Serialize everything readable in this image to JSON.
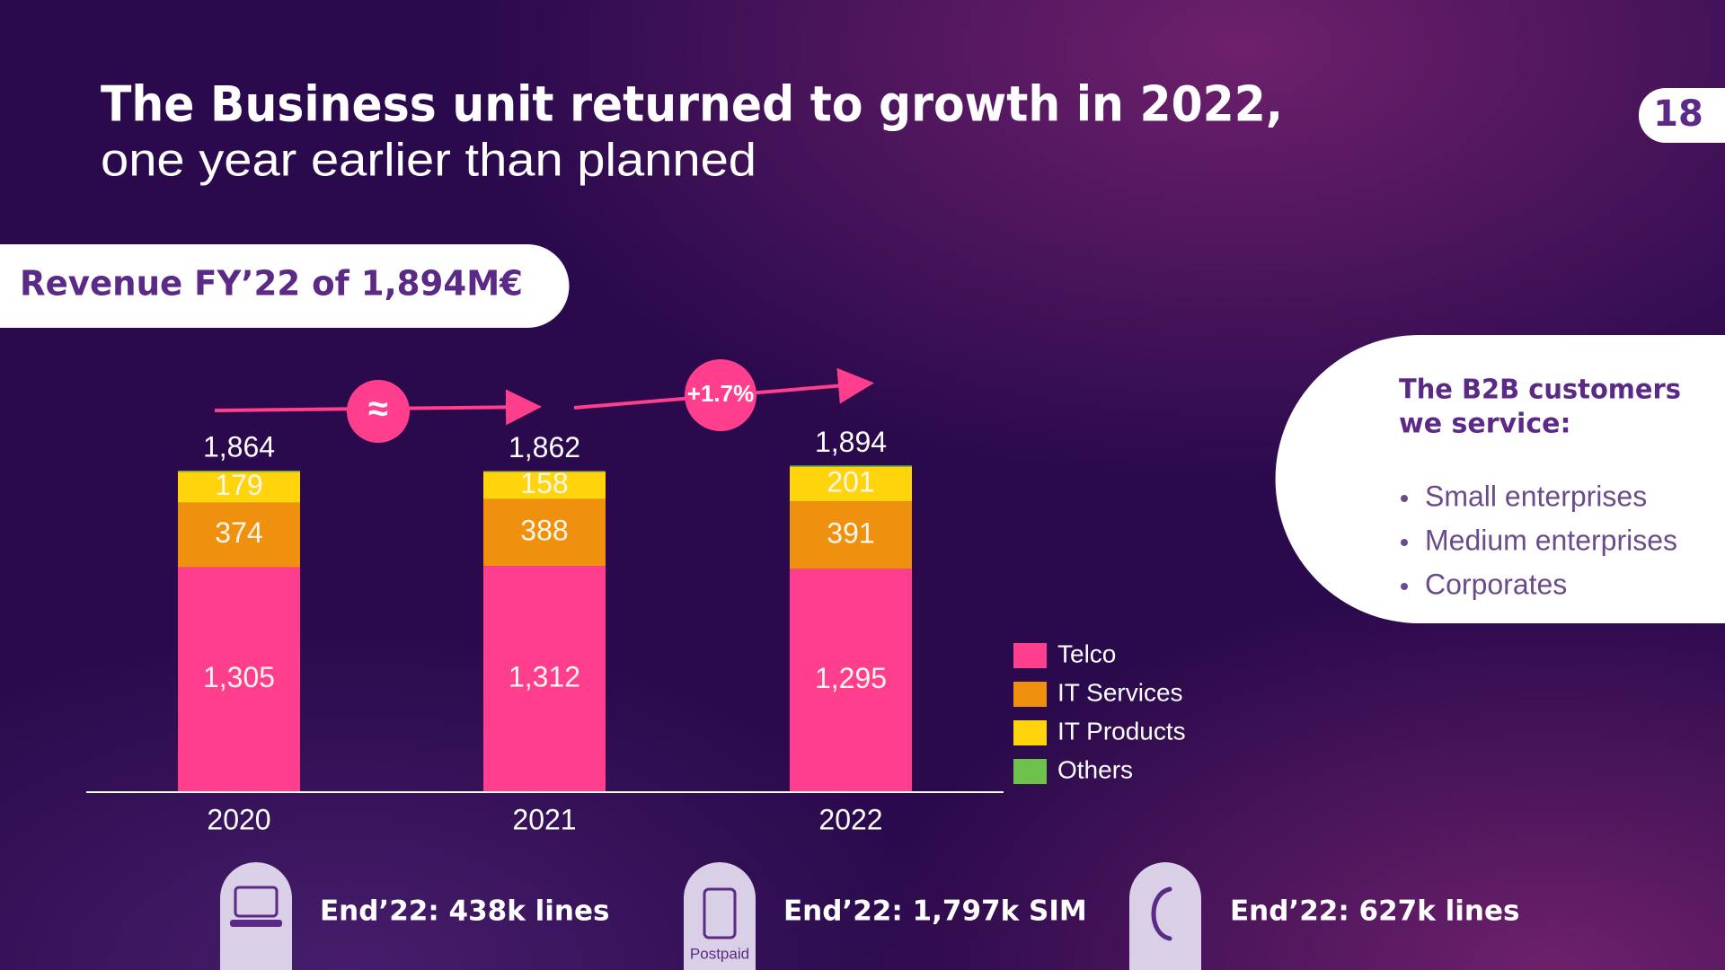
{
  "slide": {
    "title": "The Business unit returned to growth in 2022,",
    "subtitle": "one year earlier than planned",
    "page_number": "18",
    "revenue_badge": "Revenue FY’22 of 1,894M€",
    "customers": {
      "title_lines": [
        "The B2B customers",
        "we service:"
      ],
      "items": [
        "Small enterprises",
        "Medium enterprises",
        "Corporates"
      ]
    },
    "footer": {
      "stats": [
        "End’22: 438k lines",
        "End’22: 1,797k SIM",
        "End’22: 627k lines"
      ],
      "icon_caption": "Postpaid"
    }
  },
  "chart_data": {
    "type": "stacked_bar",
    "categories": [
      "2020",
      "2021",
      "2022"
    ],
    "series": [
      {
        "name": "Telco",
        "color": "#ff3f8e",
        "values": [
          1305,
          1312,
          1295
        ],
        "value_labels": [
          "1,305",
          "1,312",
          "1,295"
        ]
      },
      {
        "name": "IT Services",
        "color": "#f0900f",
        "values": [
          374,
          388,
          391
        ]
      },
      {
        "name": "IT Products",
        "color": "#ffd40c",
        "values": [
          179,
          158,
          201
        ]
      },
      {
        "name": "Others",
        "color": "#6cc24a",
        "values": [
          6,
          4,
          7
        ]
      }
    ],
    "totals": {
      "values": [
        1864,
        1862,
        1894
      ],
      "value_labels": [
        "1,864",
        "1,862",
        "1,894"
      ]
    },
    "annotations": [
      "≈",
      "+1.7%"
    ],
    "ylim": [
      0,
      2000
    ],
    "legend": "right"
  }
}
